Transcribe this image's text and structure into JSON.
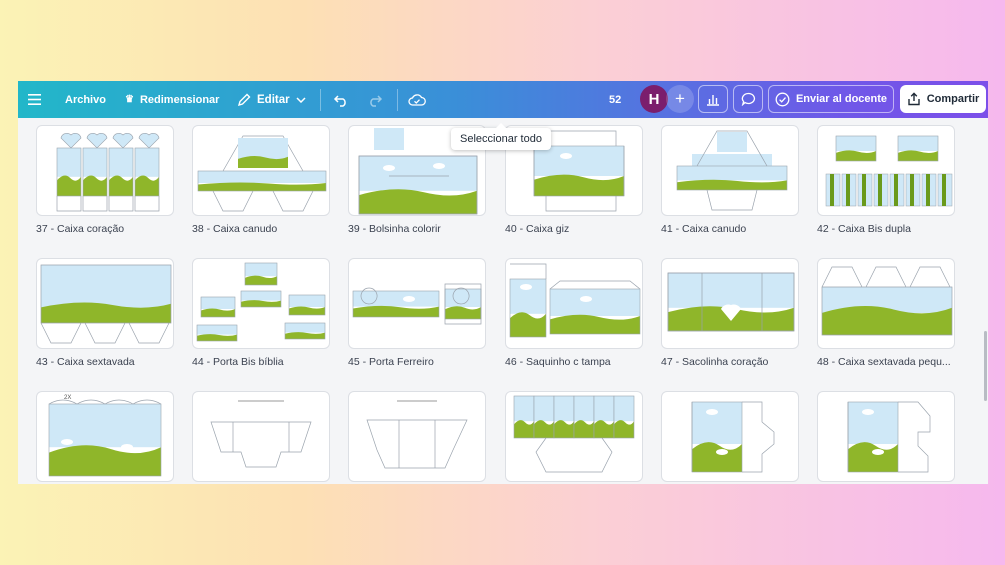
{
  "toolbar": {
    "menu_icon": "hamburger-icon",
    "file_label": "Archivo",
    "resize_label": "Redimensionar",
    "edit_label": "Editar",
    "page_count": "52",
    "avatar_initial": "H",
    "send_label": "Enviar al docente",
    "share_label": "Compartir"
  },
  "tooltip": {
    "text": "Seleccionar todo"
  },
  "colors": {
    "sky": "#cfe8f7",
    "grass": "#8fb62a",
    "grass_dark": "#6a9a1c",
    "line": "#9aa3ad"
  },
  "pages": [
    {
      "label": "37 - Caixa coração"
    },
    {
      "label": "38 - Caixa canudo"
    },
    {
      "label": "39 - Bolsinha colorir"
    },
    {
      "label": "40 - Caixa giz"
    },
    {
      "label": "41 - Caixa canudo"
    },
    {
      "label": "42 - Caixa Bis dupla"
    },
    {
      "label": "43 - Caixa sextavada"
    },
    {
      "label": "44 - Porta Bis bíblia"
    },
    {
      "label": "45 - Porta Ferreiro"
    },
    {
      "label": "46 - Saquinho c tampa"
    },
    {
      "label": "47 - Sacolinha coração"
    },
    {
      "label": "48 - Caixa sextavada pequ..."
    },
    {
      "label": ""
    },
    {
      "label": ""
    },
    {
      "label": ""
    },
    {
      "label": ""
    },
    {
      "label": ""
    },
    {
      "label": ""
    }
  ],
  "thumb_text": {
    "multiplier": "2X"
  }
}
